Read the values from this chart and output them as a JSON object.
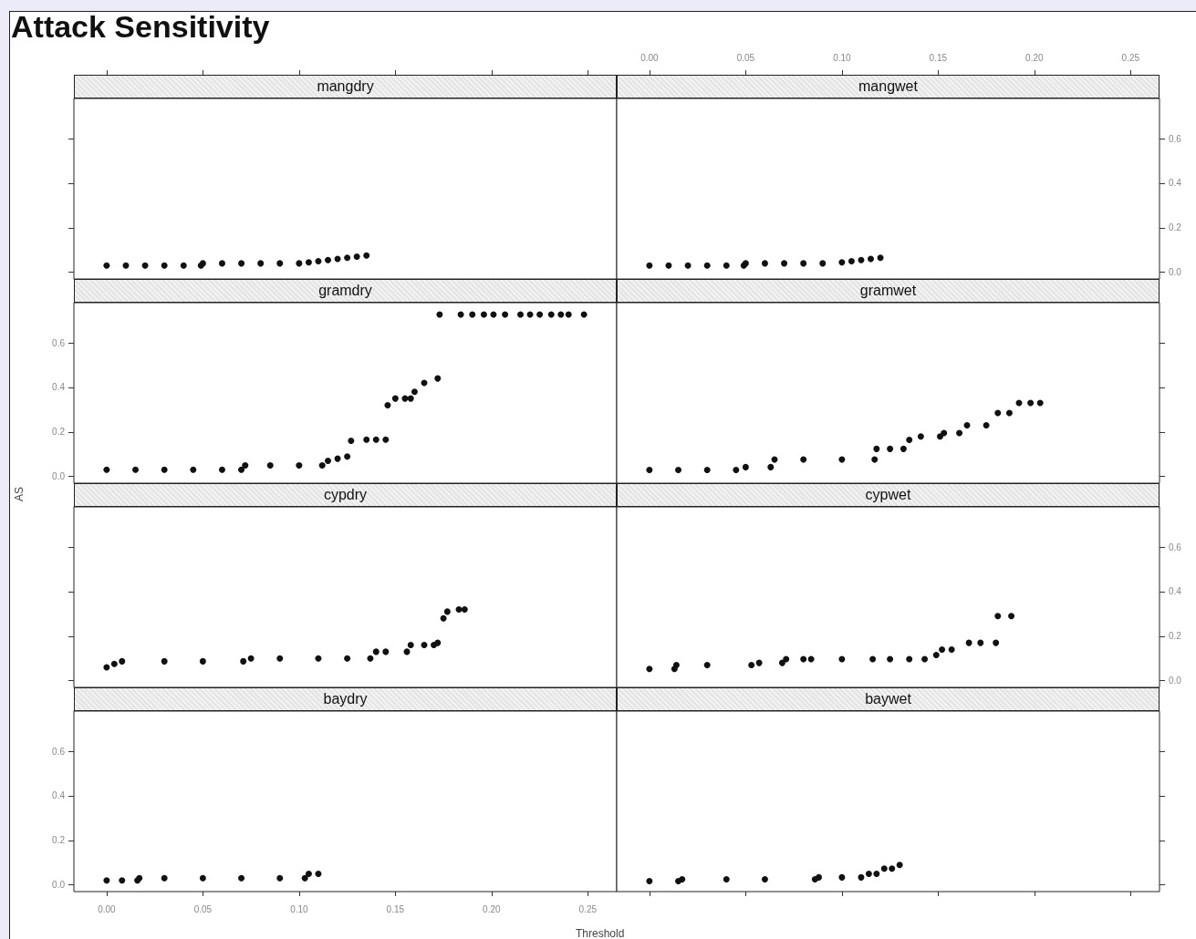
{
  "chart_data": [
    {
      "type": "scatter",
      "title": "mangdry",
      "annotations": [
        "Attack Sensitivity"
      ],
      "xlim": [
        -0.017,
        0.265
      ],
      "ylim": [
        -0.03,
        0.78
      ],
      "xticks": [
        {
          "value": 0,
          "label": null
        },
        {
          "value": 0.05,
          "label": null
        },
        {
          "value": 0.1,
          "label": null
        },
        {
          "value": 0.15,
          "label": null
        },
        {
          "value": 0.2,
          "label": null
        },
        {
          "value": 0.25,
          "label": null
        }
      ],
      "yticks": [
        {
          "value": 0,
          "label": null
        },
        {
          "value": 0.2,
          "label": null
        },
        {
          "value": 0.4,
          "label": null
        },
        {
          "value": 0.6,
          "label": null
        }
      ],
      "tick_labels": false,
      "grid": false,
      "series": [
        {
          "color": "#111111",
          "x": [
            0,
            0.01,
            0.02,
            0.03,
            0.04,
            0.049,
            0.05,
            0.06,
            0.07,
            0.08,
            0.09,
            0.1,
            0.105,
            0.11,
            0.115,
            0.12,
            0.125,
            0.13,
            0.135
          ],
          "values": [
            0.03,
            0.03,
            0.03,
            0.03,
            0.03,
            0.03,
            0.04,
            0.04,
            0.04,
            0.04,
            0.04,
            0.04,
            0.045,
            0.05,
            0.055,
            0.06,
            0.065,
            0.07,
            0.075
          ]
        }
      ]
    },
    {
      "type": "scatter",
      "title": "mangwet",
      "xlim": [
        -0.017,
        0.265
      ],
      "ylim": [
        -0.03,
        0.78
      ],
      "xticks": [
        {
          "value": 0,
          "label": "0.00"
        },
        {
          "value": 0.05,
          "label": "0.05"
        },
        {
          "value": 0.1,
          "label": "0.10"
        },
        {
          "value": 0.15,
          "label": "0.15"
        },
        {
          "value": 0.2,
          "label": "0.20"
        },
        {
          "value": 0.25,
          "label": "0.25"
        }
      ],
      "yticks": [
        {
          "value": 0,
          "label": "0.0"
        },
        {
          "value": 0.2,
          "label": "0.2"
        },
        {
          "value": 0.4,
          "label": "0.4"
        },
        {
          "value": 0.6,
          "label": "0.6"
        }
      ],
      "grid": false,
      "series": [
        {
          "color": "#111111",
          "x": [
            0,
            0.01,
            0.02,
            0.03,
            0.04,
            0.049,
            0.05,
            0.06,
            0.07,
            0.08,
            0.09,
            0.1,
            0.105,
            0.11,
            0.115,
            0.12
          ],
          "values": [
            0.03,
            0.03,
            0.03,
            0.03,
            0.03,
            0.03,
            0.04,
            0.04,
            0.04,
            0.04,
            0.04,
            0.045,
            0.05,
            0.055,
            0.06,
            0.065
          ]
        }
      ]
    },
    {
      "type": "scatter",
      "title": "gramdry",
      "ylabel": "AS",
      "xlim": [
        -0.017,
        0.265
      ],
      "ylim": [
        -0.03,
        0.78
      ],
      "xticks": [
        {
          "value": 0,
          "label": null
        },
        {
          "value": 0.05,
          "label": null
        },
        {
          "value": 0.1,
          "label": null
        },
        {
          "value": 0.15,
          "label": null
        },
        {
          "value": 0.2,
          "label": null
        },
        {
          "value": 0.25,
          "label": null
        }
      ],
      "yticks": [
        {
          "value": 0,
          "label": "0.0"
        },
        {
          "value": 0.2,
          "label": "0.2"
        },
        {
          "value": 0.4,
          "label": "0.4"
        },
        {
          "value": 0.6,
          "label": "0.6"
        }
      ],
      "tick_labels": "y",
      "grid": false,
      "series": [
        {
          "color": "#111111",
          "x": [
            0,
            0.015,
            0.03,
            0.045,
            0.06,
            0.07,
            0.072,
            0.085,
            0.1,
            0.112,
            0.115,
            0.12,
            0.125,
            0.127,
            0.135,
            0.14,
            0.145,
            0.146,
            0.15,
            0.155,
            0.158,
            0.16,
            0.165,
            0.172,
            0.173,
            0.184,
            0.19,
            0.196,
            0.201,
            0.207,
            0.215,
            0.22,
            0.225,
            0.231,
            0.236,
            0.24,
            0.248
          ],
          "values": [
            0.03,
            0.03,
            0.03,
            0.03,
            0.03,
            0.03,
            0.05,
            0.05,
            0.05,
            0.05,
            0.07,
            0.08,
            0.09,
            0.16,
            0.165,
            0.165,
            0.165,
            0.32,
            0.35,
            0.35,
            0.35,
            0.38,
            0.42,
            0.44,
            0.727,
            0.727,
            0.727,
            0.727,
            0.727,
            0.727,
            0.727,
            0.727,
            0.727,
            0.727,
            0.727,
            0.727,
            0.727
          ]
        }
      ]
    },
    {
      "type": "scatter",
      "title": "gramwet",
      "xlim": [
        -0.017,
        0.265
      ],
      "ylim": [
        -0.03,
        0.78
      ],
      "xticks": [
        {
          "value": 0,
          "label": null
        },
        {
          "value": 0.05,
          "label": null
        },
        {
          "value": 0.1,
          "label": null
        },
        {
          "value": 0.15,
          "label": null
        },
        {
          "value": 0.2,
          "label": null
        },
        {
          "value": 0.25,
          "label": null
        }
      ],
      "yticks": [
        {
          "value": 0,
          "label": null
        },
        {
          "value": 0.2,
          "label": null
        },
        {
          "value": 0.4,
          "label": null
        },
        {
          "value": 0.6,
          "label": null
        }
      ],
      "tick_labels": false,
      "grid": false,
      "series": [
        {
          "color": "#111111",
          "x": [
            0,
            0.015,
            0.03,
            0.045,
            0.05,
            0.063,
            0.065,
            0.08,
            0.1,
            0.117,
            0.118,
            0.125,
            0.132,
            0.135,
            0.141,
            0.151,
            0.153,
            0.161,
            0.165,
            0.175,
            0.181,
            0.187,
            0.192,
            0.198,
            0.203
          ],
          "values": [
            0.029,
            0.029,
            0.029,
            0.029,
            0.042,
            0.042,
            0.076,
            0.076,
            0.076,
            0.076,
            0.124,
            0.124,
            0.124,
            0.164,
            0.18,
            0.18,
            0.195,
            0.195,
            0.23,
            0.23,
            0.285,
            0.285,
            0.33,
            0.33,
            0.33
          ]
        }
      ]
    },
    {
      "type": "scatter",
      "title": "cypdry",
      "xlim": [
        -0.017,
        0.265
      ],
      "ylim": [
        -0.03,
        0.78
      ],
      "xticks": [
        {
          "value": 0,
          "label": null
        },
        {
          "value": 0.05,
          "label": null
        },
        {
          "value": 0.1,
          "label": null
        },
        {
          "value": 0.15,
          "label": null
        },
        {
          "value": 0.2,
          "label": null
        },
        {
          "value": 0.25,
          "label": null
        }
      ],
      "yticks": [
        {
          "value": 0,
          "label": null
        },
        {
          "value": 0.2,
          "label": null
        },
        {
          "value": 0.4,
          "label": null
        },
        {
          "value": 0.6,
          "label": null
        }
      ],
      "tick_labels": false,
      "grid": false,
      "series": [
        {
          "color": "#111111",
          "x": [
            0,
            0.004,
            0.008,
            0.03,
            0.05,
            0.071,
            0.075,
            0.09,
            0.11,
            0.125,
            0.137,
            0.14,
            0.145,
            0.156,
            0.158,
            0.165,
            0.17,
            0.172,
            0.175,
            0.177,
            0.183,
            0.186
          ],
          "values": [
            0.06,
            0.075,
            0.087,
            0.087,
            0.087,
            0.087,
            0.1,
            0.1,
            0.1,
            0.1,
            0.1,
            0.13,
            0.13,
            0.13,
            0.16,
            0.16,
            0.16,
            0.17,
            0.28,
            0.31,
            0.32,
            0.32
          ]
        }
      ]
    },
    {
      "type": "scatter",
      "title": "cypwet",
      "xlim": [
        -0.017,
        0.265
      ],
      "ylim": [
        -0.03,
        0.78
      ],
      "xticks": [
        {
          "value": 0,
          "label": null
        },
        {
          "value": 0.05,
          "label": null
        },
        {
          "value": 0.1,
          "label": null
        },
        {
          "value": 0.15,
          "label": null
        },
        {
          "value": 0.2,
          "label": null
        },
        {
          "value": 0.25,
          "label": null
        }
      ],
      "yticks": [
        {
          "value": 0,
          "label": "0.0"
        },
        {
          "value": 0.2,
          "label": "0.2"
        },
        {
          "value": 0.4,
          "label": "0.4"
        },
        {
          "value": 0.6,
          "label": "0.6"
        }
      ],
      "tick_labels": "y",
      "grid": false,
      "series": [
        {
          "color": "#111111",
          "x": [
            0,
            0.013,
            0.014,
            0.03,
            0.053,
            0.057,
            0.069,
            0.071,
            0.08,
            0.084,
            0.1,
            0.116,
            0.125,
            0.135,
            0.143,
            0.149,
            0.152,
            0.157,
            0.166,
            0.172,
            0.18,
            0.181,
            0.188
          ],
          "values": [
            0.053,
            0.053,
            0.07,
            0.07,
            0.07,
            0.08,
            0.08,
            0.097,
            0.097,
            0.097,
            0.097,
            0.097,
            0.097,
            0.097,
            0.097,
            0.115,
            0.14,
            0.14,
            0.17,
            0.17,
            0.17,
            0.29,
            0.29
          ]
        }
      ]
    },
    {
      "type": "scatter",
      "title": "baydry",
      "xlabel": "Threshold",
      "xlim": [
        -0.017,
        0.265
      ],
      "ylim": [
        -0.03,
        0.78
      ],
      "xticks": [
        {
          "value": 0,
          "label": "0.00"
        },
        {
          "value": 0.05,
          "label": "0.05"
        },
        {
          "value": 0.1,
          "label": "0.10"
        },
        {
          "value": 0.15,
          "label": "0.15"
        },
        {
          "value": 0.2,
          "label": "0.20"
        },
        {
          "value": 0.25,
          "label": "0.25"
        }
      ],
      "yticks": [
        {
          "value": 0,
          "label": "0.0"
        },
        {
          "value": 0.2,
          "label": "0.2"
        },
        {
          "value": 0.4,
          "label": "0.4"
        },
        {
          "value": 0.6,
          "label": "0.6"
        }
      ],
      "grid": false,
      "series": [
        {
          "color": "#111111",
          "x": [
            0,
            0.008,
            0.016,
            0.017,
            0.03,
            0.05,
            0.07,
            0.09,
            0.103,
            0.105,
            0.11
          ],
          "values": [
            0.02,
            0.02,
            0.02,
            0.03,
            0.03,
            0.03,
            0.03,
            0.03,
            0.03,
            0.05,
            0.05
          ]
        }
      ]
    },
    {
      "type": "scatter",
      "title": "baywet",
      "xlim": [
        -0.017,
        0.265
      ],
      "ylim": [
        -0.03,
        0.78
      ],
      "xticks": [
        {
          "value": 0,
          "label": null
        },
        {
          "value": 0.05,
          "label": null
        },
        {
          "value": 0.1,
          "label": null
        },
        {
          "value": 0.15,
          "label": null
        },
        {
          "value": 0.2,
          "label": null
        },
        {
          "value": 0.25,
          "label": null
        }
      ],
      "yticks": [
        {
          "value": 0,
          "label": null
        },
        {
          "value": 0.2,
          "label": null
        },
        {
          "value": 0.4,
          "label": null
        },
        {
          "value": 0.6,
          "label": null
        }
      ],
      "tick_labels": false,
      "grid": false,
      "series": [
        {
          "color": "#111111",
          "x": [
            0,
            0.015,
            0.017,
            0.04,
            0.06,
            0.086,
            0.088,
            0.1,
            0.11,
            0.114,
            0.118,
            0.122,
            0.126,
            0.13
          ],
          "values": [
            0.017,
            0.017,
            0.025,
            0.025,
            0.025,
            0.025,
            0.034,
            0.034,
            0.034,
            0.05,
            0.05,
            0.073,
            0.073,
            0.09
          ]
        }
      ]
    }
  ]
}
